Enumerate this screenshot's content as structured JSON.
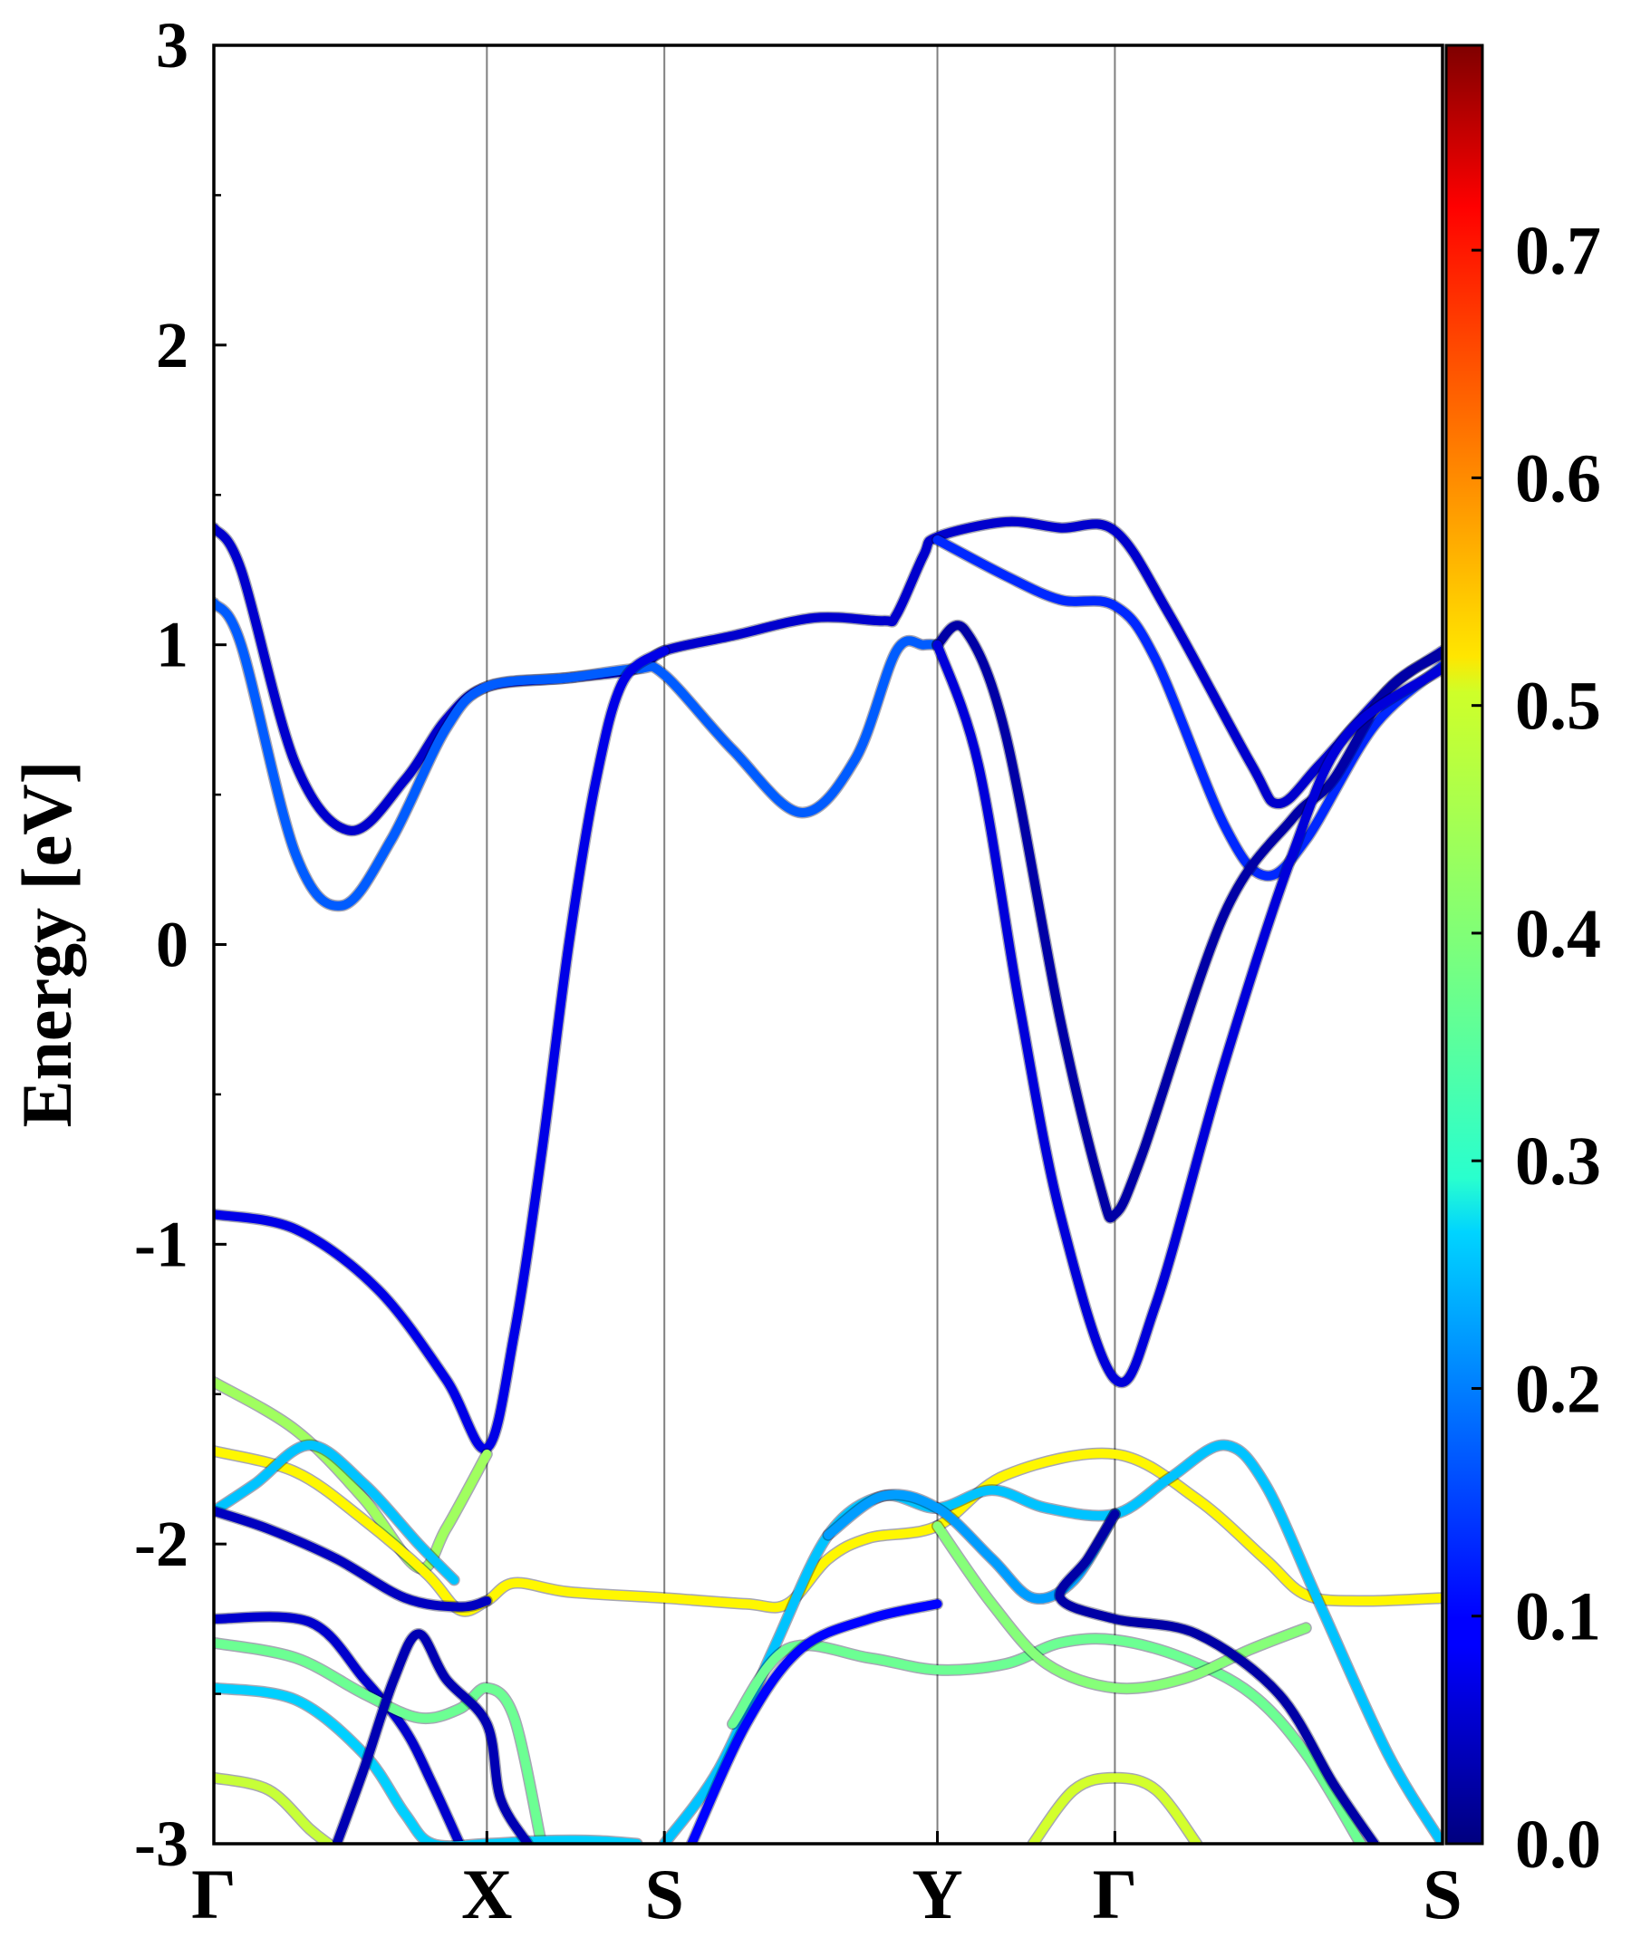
{
  "chart_data": {
    "type": "line",
    "title": "",
    "xlabel": "",
    "ylabel": "Energy [eV]",
    "ylim": [
      -3,
      3
    ],
    "yticks": [
      -3,
      -2,
      -1,
      0,
      1,
      2,
      3
    ],
    "yminor_step": 0.5,
    "kpath": [
      {
        "label": "Γ",
        "pos": 0
      },
      {
        "label": "X",
        "pos": 1.0
      },
      {
        "label": "S",
        "pos": 1.65
      },
      {
        "label": "Y",
        "pos": 2.65
      },
      {
        "label": "Γ",
        "pos": 3.3
      },
      {
        "label": "S",
        "pos": 4.5
      }
    ],
    "vlines": [
      1.0,
      1.65,
      2.65,
      3.3
    ],
    "grid": false,
    "colorbar": {
      "colormap": "jet",
      "range": [
        0,
        0.79
      ],
      "ticks": [
        "0.0",
        "0.1",
        "0.2",
        "0.3",
        "0.4",
        "0.5",
        "0.6",
        "0.7"
      ],
      "tick_values": [
        0.0,
        0.1,
        0.2,
        0.3,
        0.4,
        0.5,
        0.6,
        0.7
      ]
    },
    "bands": [
      {
        "color_value": 0.06,
        "points": [
          [
            0,
            1.39
          ],
          [
            0.1,
            1.25
          ],
          [
            0.3,
            0.6
          ],
          [
            0.5,
            0.38
          ],
          [
            0.7,
            0.55
          ],
          [
            0.85,
            0.75
          ],
          [
            1.0,
            0.86
          ],
          [
            1.3,
            0.89
          ],
          [
            1.55,
            0.92
          ],
          [
            1.65,
            0.98
          ],
          [
            1.9,
            1.03
          ],
          [
            2.2,
            1.09
          ],
          [
            2.45,
            1.08
          ],
          [
            2.5,
            1.1
          ],
          [
            2.6,
            1.3
          ],
          [
            2.65,
            1.36
          ],
          [
            2.9,
            1.41
          ],
          [
            3.1,
            1.39
          ],
          [
            3.3,
            1.38
          ],
          [
            3.5,
            1.1
          ],
          [
            3.8,
            0.6
          ],
          [
            3.9,
            0.47
          ],
          [
            4.05,
            0.6
          ],
          [
            4.3,
            0.85
          ],
          [
            4.5,
            0.98
          ]
        ]
      },
      {
        "color_value": 0.17,
        "points": [
          [
            0,
            1.14
          ],
          [
            0.1,
            1.0
          ],
          [
            0.3,
            0.3
          ],
          [
            0.47,
            0.13
          ],
          [
            0.65,
            0.35
          ],
          [
            0.85,
            0.72
          ],
          [
            1.0,
            0.86
          ],
          [
            1.3,
            0.89
          ],
          [
            1.55,
            0.92
          ],
          [
            1.65,
            0.9
          ],
          [
            1.9,
            0.65
          ],
          [
            2.15,
            0.44
          ],
          [
            2.35,
            0.62
          ],
          [
            2.5,
            0.98
          ],
          [
            2.6,
            1.0
          ],
          [
            2.65,
            1.0
          ]
        ]
      },
      {
        "color_value": 0.13,
        "points": [
          [
            2.65,
            1.35
          ],
          [
            2.9,
            1.23
          ],
          [
            3.1,
            1.15
          ],
          [
            3.3,
            1.13
          ],
          [
            3.45,
            0.95
          ],
          [
            3.7,
            0.4
          ],
          [
            3.85,
            0.23
          ],
          [
            4.0,
            0.35
          ],
          [
            4.25,
            0.73
          ],
          [
            4.5,
            0.93
          ]
        ]
      },
      {
        "color_value": 0.03,
        "points": [
          [
            2.65,
            1.0
          ],
          [
            2.75,
            1.05
          ],
          [
            2.9,
            0.7
          ],
          [
            3.1,
            -0.25
          ],
          [
            3.25,
            -0.82
          ],
          [
            3.3,
            -0.9
          ],
          [
            3.4,
            -0.7
          ],
          [
            3.7,
            0.1
          ],
          [
            3.95,
            0.42
          ],
          [
            4.1,
            0.55
          ],
          [
            4.3,
            0.85
          ],
          [
            4.5,
            0.97
          ]
        ]
      },
      {
        "color_value": 0.07,
        "points": [
          [
            2.65,
            1.0
          ],
          [
            2.8,
            0.6
          ],
          [
            2.95,
            -0.2
          ],
          [
            3.1,
            -0.9
          ],
          [
            3.3,
            -1.45
          ],
          [
            3.45,
            -1.2
          ],
          [
            3.7,
            -0.4
          ],
          [
            3.95,
            0.3
          ],
          [
            4.15,
            0.7
          ],
          [
            4.5,
            0.92
          ]
        ]
      },
      {
        "color_value": 0.08,
        "points": [
          [
            0,
            -0.9
          ],
          [
            0.3,
            -0.95
          ],
          [
            0.6,
            -1.15
          ],
          [
            0.85,
            -1.45
          ],
          [
            1.0,
            -1.68
          ],
          [
            1.1,
            -1.3
          ],
          [
            1.2,
            -0.7
          ],
          [
            1.3,
            0.0
          ],
          [
            1.4,
            0.55
          ],
          [
            1.5,
            0.88
          ],
          [
            1.65,
            0.98
          ]
        ]
      },
      {
        "color_value": 0.42,
        "points": [
          [
            0,
            -1.46
          ],
          [
            0.3,
            -1.62
          ],
          [
            0.55,
            -1.85
          ],
          [
            0.75,
            -2.08
          ],
          [
            0.85,
            -1.95
          ],
          [
            1.0,
            -1.7
          ]
        ]
      },
      {
        "color_value": 0.5,
        "points": [
          [
            0,
            -1.69
          ],
          [
            0.3,
            -1.76
          ],
          [
            0.55,
            -1.92
          ],
          [
            0.78,
            -2.1
          ],
          [
            0.9,
            -2.22
          ],
          [
            1.0,
            -2.19
          ],
          [
            1.1,
            -2.13
          ],
          [
            1.3,
            -2.16
          ],
          [
            1.65,
            -2.18
          ],
          [
            1.95,
            -2.2
          ],
          [
            2.1,
            -2.2
          ],
          [
            2.25,
            -2.05
          ],
          [
            2.4,
            -1.98
          ],
          [
            2.65,
            -1.94
          ],
          [
            2.9,
            -1.77
          ],
          [
            3.3,
            -1.7
          ],
          [
            3.6,
            -1.85
          ],
          [
            3.85,
            -2.05
          ],
          [
            4.0,
            -2.17
          ],
          [
            4.2,
            -2.19
          ],
          [
            4.5,
            -2.18
          ]
        ]
      },
      {
        "color_value": 0.25,
        "points": [
          [
            0,
            -1.89
          ],
          [
            0.15,
            -1.8
          ],
          [
            0.35,
            -1.67
          ],
          [
            0.55,
            -1.8
          ],
          [
            0.75,
            -2.0
          ],
          [
            0.88,
            -2.12
          ]
        ]
      },
      {
        "color_value": 0.05,
        "points": [
          [
            0,
            -1.89
          ],
          [
            0.2,
            -1.95
          ],
          [
            0.45,
            -2.05
          ],
          [
            0.7,
            -2.18
          ],
          [
            0.9,
            -2.21
          ],
          [
            1.0,
            -2.19
          ]
        ]
      },
      {
        "color_value": 0.25,
        "points": [
          [
            1.65,
            -3.0
          ],
          [
            1.85,
            -2.75
          ],
          [
            2.05,
            -2.35
          ],
          [
            2.25,
            -1.97
          ],
          [
            2.45,
            -1.84
          ],
          [
            2.65,
            -1.88
          ],
          [
            2.85,
            -1.82
          ],
          [
            3.05,
            -1.88
          ],
          [
            3.3,
            -1.9
          ],
          [
            3.5,
            -1.78
          ],
          [
            3.7,
            -1.67
          ],
          [
            3.85,
            -1.8
          ],
          [
            4.05,
            -2.2
          ],
          [
            4.3,
            -2.7
          ],
          [
            4.5,
            -3.0
          ]
        ]
      },
      {
        "color_value": 0.22,
        "points": [
          [
            2.25,
            -1.97
          ],
          [
            2.45,
            -1.84
          ],
          [
            2.65,
            -1.88
          ],
          [
            2.85,
            -2.05
          ],
          [
            3.0,
            -2.18
          ],
          [
            3.15,
            -2.12
          ],
          [
            3.3,
            -1.9
          ]
        ]
      },
      {
        "color_value": 0.38,
        "points": [
          [
            1.9,
            -2.6
          ],
          [
            2.1,
            -2.35
          ],
          [
            2.4,
            -2.38
          ],
          [
            2.65,
            -2.42
          ],
          [
            2.9,
            -2.4
          ],
          [
            3.1,
            -2.33
          ],
          [
            3.3,
            -2.32
          ],
          [
            3.55,
            -2.38
          ],
          [
            3.8,
            -2.5
          ],
          [
            4.0,
            -2.7
          ],
          [
            4.2,
            -3.0
          ]
        ]
      },
      {
        "color_value": 0.4,
        "points": [
          [
            2.65,
            -1.94
          ],
          [
            2.85,
            -2.2
          ],
          [
            3.05,
            -2.4
          ],
          [
            3.3,
            -2.48
          ],
          [
            3.55,
            -2.45
          ],
          [
            3.8,
            -2.35
          ],
          [
            4.0,
            -2.28
          ]
        ]
      },
      {
        "color_value": 0.03,
        "points": [
          [
            3.3,
            -1.9
          ],
          [
            3.2,
            -2.05
          ],
          [
            3.1,
            -2.18
          ],
          [
            3.3,
            -2.25
          ],
          [
            3.6,
            -2.3
          ],
          [
            3.9,
            -2.5
          ],
          [
            4.1,
            -2.8
          ],
          [
            4.25,
            -3.0
          ]
        ]
      },
      {
        "color_value": 0.1,
        "points": [
          [
            1.75,
            -3.0
          ],
          [
            1.95,
            -2.6
          ],
          [
            2.15,
            -2.35
          ],
          [
            2.4,
            -2.25
          ],
          [
            2.65,
            -2.2
          ]
        ]
      },
      {
        "color_value": 0.06,
        "points": [
          [
            0,
            -2.25
          ],
          [
            0.35,
            -2.26
          ],
          [
            0.55,
            -2.45
          ],
          [
            0.7,
            -2.62
          ],
          [
            0.8,
            -2.8
          ],
          [
            0.9,
            -3.0
          ]
        ]
      },
      {
        "color_value": 0.38,
        "points": [
          [
            0,
            -2.33
          ],
          [
            0.3,
            -2.38
          ],
          [
            0.55,
            -2.5
          ],
          [
            0.75,
            -2.58
          ],
          [
            0.9,
            -2.55
          ],
          [
            1.0,
            -2.48
          ],
          [
            1.1,
            -2.58
          ],
          [
            1.2,
            -3.0
          ]
        ]
      },
      {
        "color_value": 0.26,
        "points": [
          [
            0,
            -2.48
          ],
          [
            0.3,
            -2.52
          ],
          [
            0.55,
            -2.7
          ],
          [
            0.7,
            -2.9
          ],
          [
            0.8,
            -3.0
          ],
          [
            1.0,
            -3.0
          ],
          [
            1.2,
            -2.99
          ],
          [
            1.4,
            -2.99
          ],
          [
            1.55,
            -3.0
          ]
        ]
      },
      {
        "color_value": 0.04,
        "points": [
          [
            0.45,
            -3.0
          ],
          [
            0.55,
            -2.75
          ],
          [
            0.66,
            -2.45
          ],
          [
            0.75,
            -2.3
          ],
          [
            0.85,
            -2.45
          ],
          [
            1.0,
            -2.6
          ],
          [
            1.05,
            -2.85
          ],
          [
            1.15,
            -3.0
          ]
        ]
      },
      {
        "color_value": 0.45,
        "points": [
          [
            0,
            -2.78
          ],
          [
            0.2,
            -2.82
          ],
          [
            0.35,
            -2.95
          ],
          [
            0.42,
            -3.0
          ]
        ]
      },
      {
        "color_value": 0.46,
        "points": [
          [
            3.0,
            -3.0
          ],
          [
            3.15,
            -2.82
          ],
          [
            3.3,
            -2.78
          ],
          [
            3.45,
            -2.82
          ],
          [
            3.6,
            -3.0
          ]
        ]
      }
    ]
  }
}
